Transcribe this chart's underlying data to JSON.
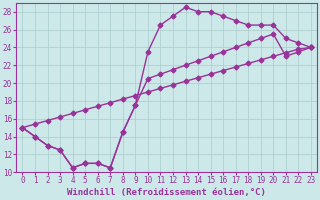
{
  "xlabel": "Windchill (Refroidissement éolien,°C)",
  "background_color": "#cce8e8",
  "grid_color": "#aacccc",
  "line_color": "#993399",
  "xlim": [
    -0.5,
    23.5
  ],
  "ylim": [
    10,
    29
  ],
  "xticks": [
    0,
    1,
    2,
    3,
    4,
    5,
    6,
    7,
    8,
    9,
    10,
    11,
    12,
    13,
    14,
    15,
    16,
    17,
    18,
    19,
    20,
    21,
    22,
    23
  ],
  "yticks": [
    10,
    12,
    14,
    16,
    18,
    20,
    22,
    24,
    26,
    28
  ],
  "line1_x": [
    0,
    1,
    2,
    3,
    4,
    5,
    6,
    7,
    8,
    9,
    10,
    11,
    12,
    13,
    14,
    15,
    16,
    17,
    18,
    19,
    20,
    21,
    22,
    23
  ],
  "line1_y": [
    15,
    14,
    13,
    12.5,
    10.5,
    11,
    11,
    10.5,
    14.5,
    17.5,
    23.5,
    26.5,
    27.5,
    28.5,
    28,
    28,
    27.5,
    27,
    26.5,
    26.5,
    26.5,
    25,
    24.5,
    24
  ],
  "line2_x": [
    0,
    1,
    2,
    3,
    4,
    5,
    6,
    7,
    8,
    9,
    10,
    11,
    12,
    13,
    14,
    15,
    16,
    17,
    18,
    19,
    20,
    21,
    22,
    23
  ],
  "line2_y": [
    15,
    15.4,
    15.8,
    16.2,
    16.6,
    17.0,
    17.4,
    17.8,
    18.2,
    18.6,
    19.0,
    19.4,
    19.8,
    20.2,
    20.6,
    21.0,
    21.4,
    21.8,
    22.2,
    22.6,
    23.0,
    23.4,
    23.8,
    24
  ],
  "line3_x": [
    0,
    1,
    2,
    3,
    4,
    5,
    6,
    7,
    8,
    9,
    10,
    11,
    12,
    13,
    14,
    15,
    16,
    17,
    18,
    19,
    20,
    21,
    22,
    23
  ],
  "line3_y": [
    15,
    14,
    13,
    12.5,
    10.5,
    11,
    11,
    10.5,
    14.5,
    17.5,
    20.5,
    21.0,
    21.5,
    22.0,
    22.5,
    23.0,
    23.5,
    24.0,
    24.5,
    25.0,
    25.5,
    23.0,
    23.5,
    24
  ],
  "marker": "D",
  "markersize": 2.5,
  "linewidth": 1.0,
  "tick_fontsize": 5.5,
  "xlabel_fontsize": 6.5
}
